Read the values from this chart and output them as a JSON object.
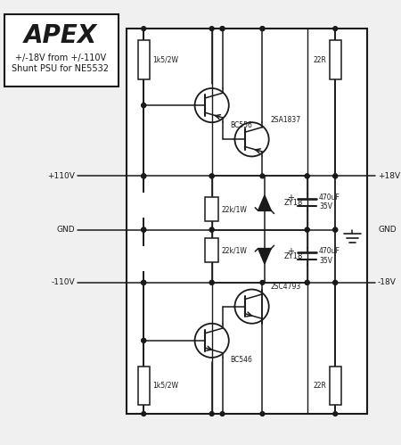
{
  "apex_text": "APEX",
  "subtitle1": "+/-18V from +/-110V",
  "subtitle2": "Shunt PSU for NE5532",
  "bg_color": "#f0f0f0",
  "line_color": "#1a1a1a",
  "text_color": "#1a1a1a"
}
